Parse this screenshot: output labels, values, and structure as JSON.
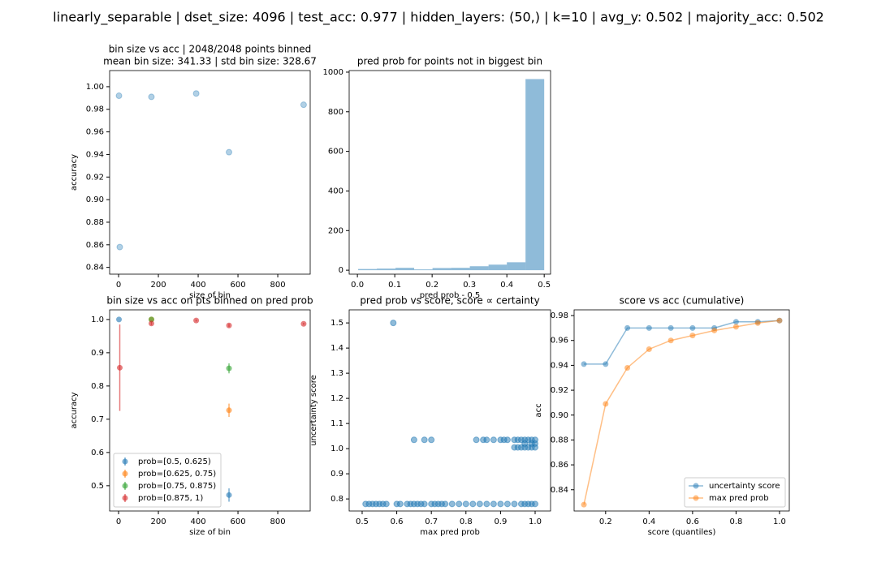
{
  "title": "linearly_separable | dset_size: 4096 | test_acc: 0.977 | hidden_layers: (50,) | k=10 | avg_y: 0.502 | majority_acc: 0.502",
  "chart_data": [
    {
      "type": "scatter",
      "title": "bin size vs acc | 2048/2048 points binned",
      "subtitle": "mean bin size: 341.33 | std bin size: 328.67",
      "xlabel": "size of bin",
      "ylabel": "accuracy",
      "color": "#1f77b4",
      "alpha": 0.35,
      "x": [
        2,
        165,
        390,
        555,
        930,
        6
      ],
      "values": [
        0.992,
        0.991,
        0.994,
        0.942,
        0.984,
        0.858
      ],
      "xlim": [
        -45,
        963
      ],
      "xticks": [
        0,
        200,
        400,
        600,
        800
      ],
      "ylim": [
        0.834,
        1.0143
      ],
      "yticks": [
        0.84,
        0.86,
        0.88,
        {
          "value": 0.9,
          "label": "0.90"
        },
        0.92,
        0.94,
        0.96,
        0.98,
        {
          "value": 1,
          "label": "1.00"
        }
      ]
    },
    {
      "type": "histogram",
      "title": "pred prob for points not in biggest bin",
      "xlabel": "pred prob - 0.5",
      "color": "#1f77b4",
      "alpha": 0.5,
      "bins": [
        0.002,
        0.052,
        0.102,
        0.152,
        0.201,
        0.251,
        0.301,
        0.351,
        0.4,
        0.45,
        0.5
      ],
      "values": [
        6,
        8,
        12,
        4,
        11,
        12,
        20,
        28,
        40,
        965
      ],
      "xlim": [
        -0.022,
        0.517
      ],
      "xticks": [
        {
          "value": 0,
          "label": "0.0"
        },
        0.1,
        0.2,
        0.3,
        0.4,
        0.5
      ],
      "ylim": [
        -20,
        1008
      ],
      "yticks": [
        0,
        200,
        400,
        600,
        800,
        1000
      ]
    },
    {
      "type": "errorbar",
      "title": "bin size vs acc on pts binned on pred prob",
      "xlabel": "size of bin",
      "ylabel": "accuracy",
      "alpha": 0.6,
      "legend": "lower left",
      "series": [
        {
          "name": "prob=[0.5, 0.625)",
          "color": "#1f77b4",
          "x": [
            2,
            555
          ],
          "values": [
            1.0,
            0.472
          ],
          "errors": [
            0,
            0.02
          ]
        },
        {
          "name": "prob=[0.625, 0.75)",
          "color": "#ff7f0e",
          "x": [
            165,
            555
          ],
          "values": [
            1.0,
            0.727
          ],
          "errors": [
            0,
            0.02
          ]
        },
        {
          "name": "prob=[0.75, 0.875)",
          "color": "#2ca02c",
          "x": [
            165,
            555
          ],
          "values": [
            1.0,
            0.853
          ],
          "errors": [
            0,
            0.015
          ]
        },
        {
          "name": "prob=[0.875, 1)",
          "color": "#d62728",
          "x": [
            6,
            165,
            390,
            555,
            930
          ],
          "values": [
            0.855,
            0.988,
            0.997,
            0.982,
            0.987
          ],
          "errors": [
            0.13,
            0.005,
            0.003,
            0.005,
            0.003
          ]
        }
      ],
      "xlim": [
        -45,
        963
      ],
      "xticks": [
        0,
        200,
        400,
        600,
        800
      ],
      "ylim": [
        0.424,
        1.029
      ],
      "yticks": [
        0.5,
        0.6,
        0.7,
        0.8,
        0.9,
        {
          "value": 1,
          "label": "1.0"
        }
      ]
    },
    {
      "type": "scatter",
      "title": "pred prob vs score, score ∝ certainty",
      "xlabel": "max pred prob",
      "ylabel": "uncertainty score",
      "color": "#1f77b4",
      "alpha": 0.5,
      "x": [
        0.51,
        0.52,
        0.53,
        0.54,
        0.55,
        0.56,
        0.57,
        0.6,
        0.61,
        0.63,
        0.64,
        0.65,
        0.66,
        0.67,
        0.68,
        0.7,
        0.71,
        0.72,
        0.73,
        0.74,
        0.76,
        0.78,
        0.8,
        0.82,
        0.84,
        0.86,
        0.88,
        0.9,
        0.92,
        0.94,
        0.96,
        0.97,
        0.98,
        0.99,
        1.0,
        0.65,
        0.68,
        0.7,
        0.83,
        0.85,
        0.86,
        0.88,
        0.9,
        0.91,
        0.92,
        0.94,
        0.95,
        0.96,
        0.97,
        0.98,
        0.99,
        1.0,
        0.94,
        0.95,
        0.96,
        0.97,
        0.98,
        0.99,
        1.0,
        0.97,
        0.99,
        1.0,
        0.59
      ],
      "values": [
        0.78,
        0.78,
        0.78,
        0.78,
        0.78,
        0.78,
        0.78,
        0.78,
        0.78,
        0.78,
        0.78,
        0.78,
        0.78,
        0.78,
        0.78,
        0.78,
        0.78,
        0.78,
        0.78,
        0.78,
        0.78,
        0.78,
        0.78,
        0.78,
        0.78,
        0.78,
        0.78,
        0.78,
        0.78,
        0.78,
        0.78,
        0.78,
        0.78,
        0.78,
        0.78,
        1.035,
        1.035,
        1.035,
        1.035,
        1.035,
        1.035,
        1.035,
        1.035,
        1.035,
        1.035,
        1.035,
        1.035,
        1.035,
        1.035,
        1.035,
        1.035,
        1.035,
        1.005,
        1.005,
        1.005,
        1.005,
        1.005,
        1.005,
        1.005,
        1.02,
        1.02,
        1.02,
        1.5
      ],
      "xlim": [
        0.4625,
        1.0446
      ],
      "xticks": [
        0.5,
        0.6,
        0.7,
        0.8,
        0.9,
        {
          "value": 1,
          "label": "1.0"
        }
      ],
      "ylim": [
        0.752,
        1.552
      ],
      "yticks": [
        0.8,
        0.9,
        {
          "value": 1,
          "label": "1.0"
        },
        1.1,
        1.2,
        1.3,
        1.4,
        1.5
      ]
    },
    {
      "type": "line",
      "title": "score vs acc (cumulative)",
      "xlabel": "score (quantiles)",
      "ylabel": "acc",
      "alpha": 0.5,
      "legend": "lower right",
      "x": [
        0.1,
        0.2,
        0.3,
        0.4,
        0.5,
        0.6,
        0.7,
        0.8,
        0.9,
        1.0
      ],
      "series": [
        {
          "name": "uncertainty score",
          "color": "#1f77b4",
          "values": [
            0.941,
            0.941,
            0.97,
            0.97,
            0.97,
            0.97,
            0.97,
            0.975,
            0.975,
            0.976
          ]
        },
        {
          "name": "max pred prob",
          "color": "#ff7f0e",
          "values": [
            0.828,
            0.909,
            0.938,
            0.953,
            0.96,
            0.964,
            0.968,
            0.971,
            0.974,
            0.976
          ]
        }
      ],
      "xlim": [
        0.055,
        1.045
      ],
      "xticks": [
        0.2,
        0.4,
        0.6,
        0.8,
        {
          "value": 1,
          "label": "1.0"
        }
      ],
      "ylim": [
        0.8229,
        0.9846
      ],
      "yticks": [
        0.84,
        0.86,
        0.88,
        {
          "value": 0.9,
          "label": "0.90"
        },
        0.92,
        0.94,
        0.96,
        0.98
      ]
    }
  ]
}
